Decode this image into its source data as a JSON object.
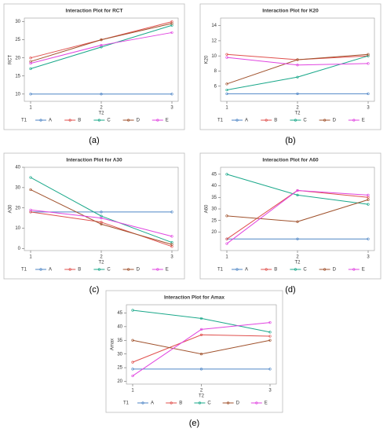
{
  "chart_data": [
    {
      "type": "line",
      "title": "Interaction Plot for RCT",
      "caption": "(a)",
      "xlabel": "T2",
      "ylabel": "RCT",
      "legend_title": "T1",
      "categories": [
        "1",
        "2",
        "3"
      ],
      "ylim": [
        8,
        31
      ],
      "yticks": [
        10,
        15,
        20,
        25,
        30
      ],
      "series": [
        {
          "name": "A",
          "color": "#4f86c6",
          "values": [
            10,
            10,
            10
          ]
        },
        {
          "name": "B",
          "color": "#e0504d",
          "values": [
            20,
            25,
            30
          ]
        },
        {
          "name": "C",
          "color": "#1aa88a",
          "values": [
            17,
            23,
            29
          ]
        },
        {
          "name": "D",
          "color": "#a0522d",
          "values": [
            19,
            25,
            29.5
          ]
        },
        {
          "name": "E",
          "color": "#e045e0",
          "values": [
            18.5,
            23.5,
            27
          ]
        }
      ]
    },
    {
      "type": "line",
      "title": "Interaction Plot for K20",
      "caption": "(b)",
      "xlabel": "T2",
      "ylabel": "K20",
      "legend_title": "T1",
      "categories": [
        "1",
        "2",
        "3"
      ],
      "ylim": [
        4,
        15
      ],
      "yticks": [
        6,
        8,
        10,
        12,
        14
      ],
      "series": [
        {
          "name": "A",
          "color": "#4f86c6",
          "values": [
            5,
            5,
            5
          ]
        },
        {
          "name": "B",
          "color": "#e0504d",
          "values": [
            10.2,
            9.5,
            10
          ]
        },
        {
          "name": "C",
          "color": "#1aa88a",
          "values": [
            5.5,
            7.2,
            10
          ]
        },
        {
          "name": "D",
          "color": "#a0522d",
          "values": [
            6.3,
            9.5,
            10.2
          ]
        },
        {
          "name": "E",
          "color": "#e045e0",
          "values": [
            9.8,
            8.8,
            9
          ]
        }
      ]
    },
    {
      "type": "line",
      "title": "Interaction Plot for A30",
      "caption": "(c)",
      "xlabel": "T2",
      "ylabel": "A30",
      "legend_title": "T1",
      "categories": [
        "1",
        "2",
        "3"
      ],
      "ylim": [
        -1,
        40
      ],
      "yticks": [
        0,
        10,
        20,
        30,
        40
      ],
      "series": [
        {
          "name": "A",
          "color": "#4f86c6",
          "values": [
            18,
            18,
            18
          ]
        },
        {
          "name": "B",
          "color": "#e0504d",
          "values": [
            18,
            13,
            1
          ]
        },
        {
          "name": "C",
          "color": "#1aa88a",
          "values": [
            35,
            16,
            3
          ]
        },
        {
          "name": "D",
          "color": "#a0522d",
          "values": [
            29,
            12,
            2
          ]
        },
        {
          "name": "E",
          "color": "#e045e0",
          "values": [
            19,
            15,
            6
          ]
        }
      ]
    },
    {
      "type": "line",
      "title": "Interaction Plot for A60",
      "caption": "(d)",
      "xlabel": "T2",
      "ylabel": "A60",
      "legend_title": "T1",
      "categories": [
        "1",
        "2",
        "3"
      ],
      "ylim": [
        12,
        48
      ],
      "yticks": [
        20,
        25,
        30,
        35,
        40,
        45
      ],
      "series": [
        {
          "name": "A",
          "color": "#4f86c6",
          "values": [
            17,
            17,
            17
          ]
        },
        {
          "name": "B",
          "color": "#e0504d",
          "values": [
            17,
            38,
            35
          ]
        },
        {
          "name": "C",
          "color": "#1aa88a",
          "values": [
            45,
            36,
            32
          ]
        },
        {
          "name": "D",
          "color": "#a0522d",
          "values": [
            27,
            24.5,
            34
          ]
        },
        {
          "name": "E",
          "color": "#e045e0",
          "values": [
            15,
            38,
            36
          ]
        }
      ]
    },
    {
      "type": "line",
      "title": "Interaction Plot for Amax",
      "caption": "(e)",
      "xlabel": "T2",
      "ylabel": "Amax",
      "legend_title": "T1",
      "categories": [
        "1",
        "2",
        "3"
      ],
      "ylim": [
        19,
        48
      ],
      "yticks": [
        20,
        25,
        30,
        35,
        40,
        45
      ],
      "series": [
        {
          "name": "A",
          "color": "#4f86c6",
          "values": [
            24.5,
            24.5,
            24.5
          ]
        },
        {
          "name": "B",
          "color": "#e0504d",
          "values": [
            27,
            37,
            36.5
          ]
        },
        {
          "name": "C",
          "color": "#1aa88a",
          "values": [
            46,
            43,
            38
          ]
        },
        {
          "name": "D",
          "color": "#a0522d",
          "values": [
            35,
            30,
            35
          ]
        },
        {
          "name": "E",
          "color": "#e045e0",
          "values": [
            22,
            39,
            41.5
          ]
        }
      ]
    }
  ]
}
